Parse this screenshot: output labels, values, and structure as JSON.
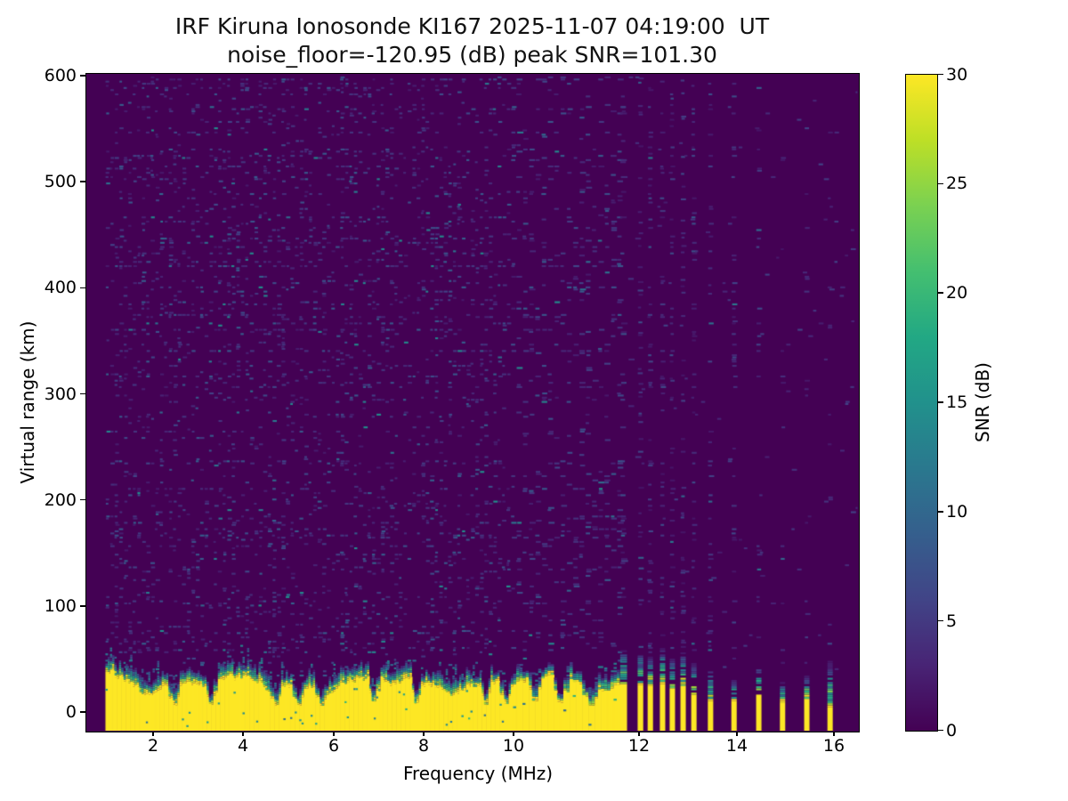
{
  "chart_data": {
    "type": "heatmap",
    "title": "IRF Kiruna Ionosonde KI167 2025-11-07 04:19:00  UT",
    "subtitle": "noise_floor=-120.95 (dB) peak SNR=101.30",
    "station": "IRF Kiruna Ionosonde KI167",
    "timestamp_ut": "2025-11-07 04:19:00",
    "noise_floor_db": -120.95,
    "peak_snr_db": 101.3,
    "xlabel": "Frequency (MHz)",
    "ylabel": "Virtual range (km)",
    "x_ticks": [
      2,
      4,
      6,
      8,
      10,
      12,
      14,
      16
    ],
    "y_ticks": [
      0,
      100,
      200,
      300,
      400,
      500,
      600
    ],
    "x_range_mhz": [
      0.5,
      16.5
    ],
    "y_range_km": [
      -18,
      600
    ],
    "grid": false,
    "colorbar": {
      "label": "SNR (dB)",
      "ticks": [
        0,
        5,
        10,
        15,
        20,
        25,
        30
      ],
      "min": 0,
      "max": 30,
      "colormap": "viridis"
    },
    "colormap_stops": [
      [
        0.0,
        "#440154"
      ],
      [
        0.1,
        "#482475"
      ],
      [
        0.2,
        "#414487"
      ],
      [
        0.3,
        "#355f8d"
      ],
      [
        0.4,
        "#2a788e"
      ],
      [
        0.5,
        "#21918c"
      ],
      [
        0.6,
        "#22a884"
      ],
      [
        0.7,
        "#44bf70"
      ],
      [
        0.8,
        "#7ad151"
      ],
      [
        0.9,
        "#bddf26"
      ],
      [
        1.0,
        "#fde725"
      ]
    ],
    "sweep": {
      "f_start_mhz": 0.95,
      "continuous_band_end_mhz": 11.66,
      "f_end_mhz": 16.45
    },
    "ground_echo_band": {
      "bottom_km": -18,
      "typical_top_km": 28,
      "start_top_km": 40,
      "band_snr_db": 30,
      "notch_freqs_mhz": [
        2.46,
        3.29,
        4.71,
        5.21,
        5.7,
        6.88,
        7.82,
        9.37,
        9.82,
        10.33,
        10.74,
        11.22
      ]
    },
    "rfi_stripes": [
      {
        "f_mhz": 11.76,
        "yellow_top_km": 26,
        "teal_top_km": 58
      },
      {
        "f_mhz": 12.04,
        "yellow_top_km": 25,
        "teal_top_km": 55
      },
      {
        "f_mhz": 12.24,
        "yellow_top_km": 24,
        "teal_top_km": 52
      },
      {
        "f_mhz": 12.49,
        "yellow_top_km": 26,
        "teal_top_km": 60
      },
      {
        "f_mhz": 12.69,
        "yellow_top_km": 22,
        "teal_top_km": 50
      },
      {
        "f_mhz": 12.91,
        "yellow_top_km": 24,
        "teal_top_km": 55
      },
      {
        "f_mhz": 13.13,
        "yellow_top_km": 16,
        "teal_top_km": 46
      },
      {
        "f_mhz": 13.47,
        "yellow_top_km": 10,
        "teal_top_km": 40
      },
      {
        "f_mhz": 13.95,
        "yellow_top_km": 10,
        "teal_top_km": 30
      },
      {
        "f_mhz": 14.46,
        "yellow_top_km": 16,
        "teal_top_km": 42
      },
      {
        "f_mhz": 14.95,
        "yellow_top_km": 8,
        "teal_top_km": 28
      },
      {
        "f_mhz": 15.45,
        "yellow_top_km": 12,
        "teal_top_km": 34
      },
      {
        "f_mhz": 15.93,
        "yellow_top_km": 4,
        "teal_top_km": 48
      }
    ],
    "background_noise": {
      "speckle_snr_db_range": [
        2,
        15
      ],
      "speckle_density": 0.11
    }
  }
}
